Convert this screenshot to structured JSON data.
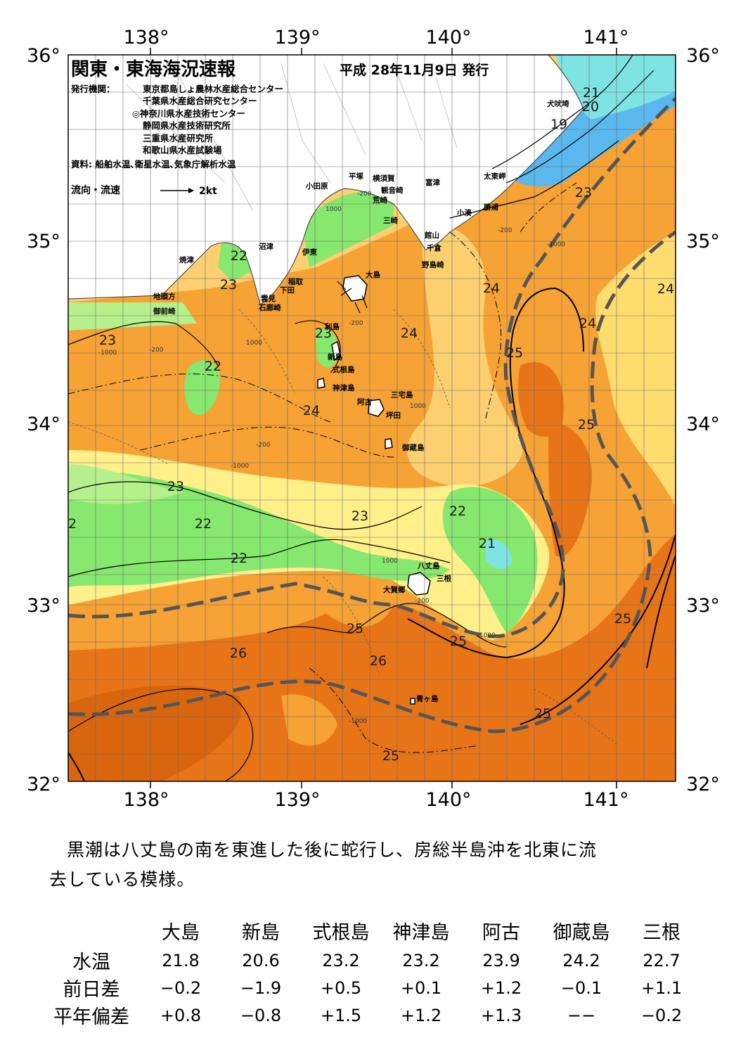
{
  "header": {
    "title": "関東・東海海況速報",
    "date": "平成 28年11月9日 発行",
    "issuer_label": "発行機関：",
    "issuers": [
      "東京都島しょ農林水産総合センター",
      "千葉県水産総合研究センター",
      "◎神奈川県水産技術センター",
      "静岡県水産技術研究所",
      "三重県水産研究所",
      "和歌山県水産試験場"
    ],
    "source": "資料: 船舶水温､衛星水温､気象庁解析水温",
    "flow_legend": "流向・流速",
    "flow_unit": "2kt"
  },
  "map": {
    "lon_ticks": [
      "138°",
      "139°",
      "140°",
      "141°"
    ],
    "lat_ticks": [
      "36°",
      "35°",
      "34°",
      "33°",
      "32°"
    ],
    "colors": {
      "cyan": "#7de3e3",
      "blue": "#5ab8ee",
      "green": "#86e86e",
      "light_green": "#b6f08c",
      "yellow": "#fff08a",
      "light_orange": "#fcd070",
      "orange": "#f6a235",
      "dark_orange": "#e87418",
      "land": "#ffffff",
      "kuroshio_axis": "#555555"
    },
    "place_names": [
      "犬吠埼",
      "太東岬",
      "勝浦",
      "小湊",
      "富津",
      "観音崎",
      "横須賀",
      "平塚",
      "荒崎",
      "三崎",
      "小田原",
      "館山",
      "千倉",
      "野島崎",
      "大島",
      "稲取",
      "伊東",
      "沼津",
      "下田",
      "雲見",
      "石廊崎",
      "焼津",
      "地頭方",
      "御前崎",
      "利島",
      "新島",
      "式根島",
      "神津島",
      "阿古",
      "三宅島",
      "坪田",
      "御蔵島",
      "八丈島",
      "三根",
      "大賀郷",
      "青ヶ島"
    ],
    "isotherm_labels": [
      "21",
      "20",
      "19",
      "23",
      "22",
      "23",
      "24",
      "24",
      "23",
      "24",
      "24",
      "25",
      "23",
      "22",
      "24",
      "25",
      "23",
      "22",
      "2",
      "23",
      "22",
      "21",
      "22",
      "25",
      "25",
      "25",
      "26",
      "26",
      "25",
      "25",
      "25"
    ],
    "depth_labels": [
      "-200",
      "1000",
      "-1000"
    ]
  },
  "summary": {
    "line1": "黒潮は八丈島の南を東進した後に蛇行し、房総半島沖を北東に流",
    "line2": "去している模様。"
  },
  "table": {
    "columns": [
      "大島",
      "新島",
      "式根島",
      "神津島",
      "阿古",
      "御蔵島",
      "三根"
    ],
    "rows": [
      {
        "label": "水温",
        "values": [
          "21.8",
          "20.6",
          "23.2",
          "23.2",
          "23.9",
          "24.2",
          "22.7"
        ]
      },
      {
        "label": "前日差",
        "values": [
          "−0.2",
          "−1.9",
          "+0.5",
          "+0.1",
          "+1.2",
          "−0.1",
          "+1.1"
        ]
      },
      {
        "label": "平年偏差",
        "values": [
          "+0.8",
          "−0.8",
          "+1.5",
          "+1.2",
          "+1.3",
          "−−",
          "−0.2"
        ]
      }
    ]
  }
}
